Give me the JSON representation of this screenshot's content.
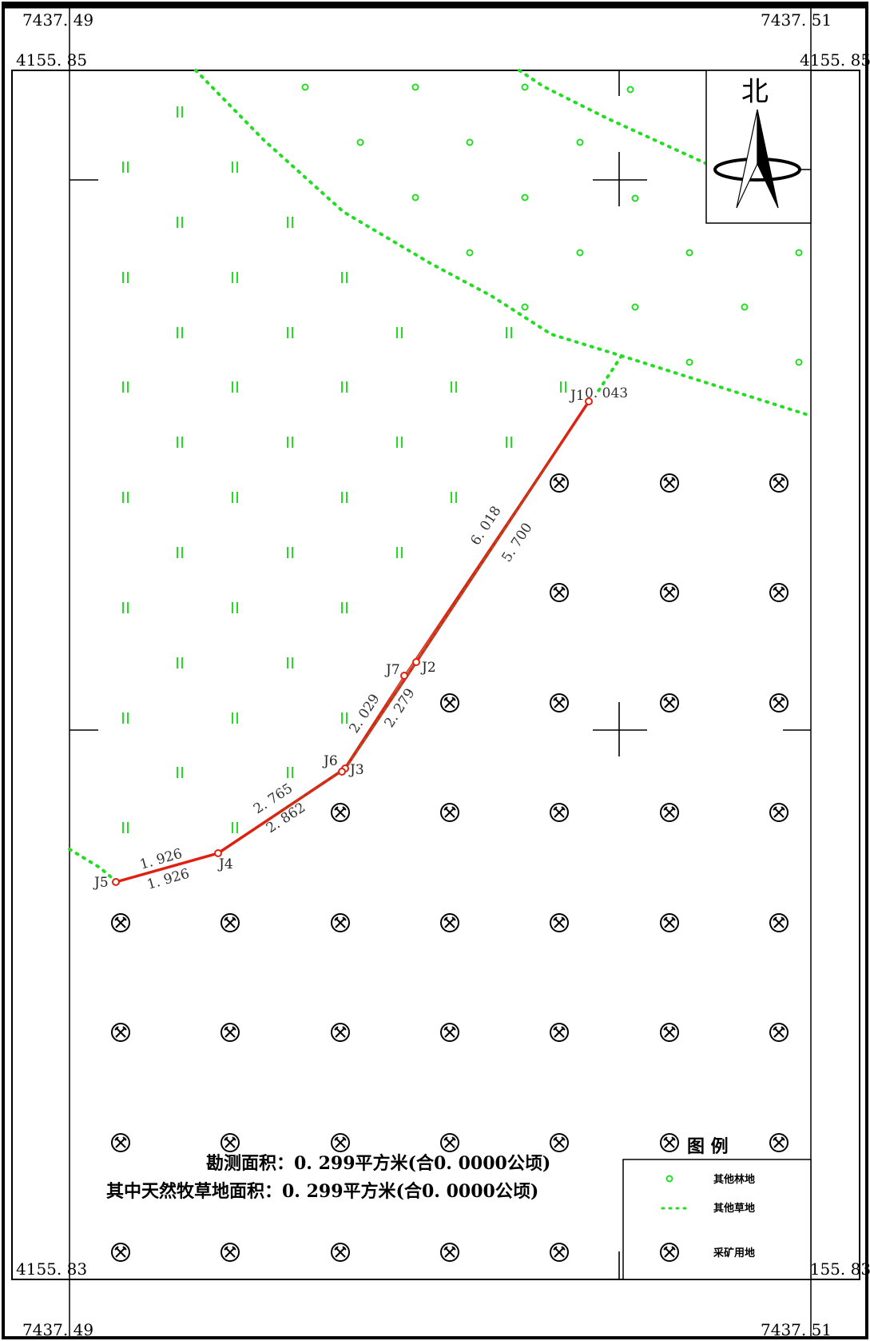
{
  "frame": {
    "top_left_x": "7437. 49",
    "top_right_x": "7437. 51",
    "bottom_left_x": "7437. 49",
    "bottom_right_x": "7437. 51",
    "left_top_y": "4155. 85",
    "right_top_y": "4155. 85",
    "left_bottom_y": "4155. 83",
    "right_bottom_y": "4155. 83"
  },
  "north_label": "北",
  "points": [
    {
      "id": "J1",
      "label": "J1"
    },
    {
      "id": "J2",
      "label": "J2"
    },
    {
      "id": "J3",
      "label": "J3"
    },
    {
      "id": "J4",
      "label": "J4"
    },
    {
      "id": "J5",
      "label": "J5"
    },
    {
      "id": "J6",
      "label": "J6"
    },
    {
      "id": "J7",
      "label": "J7"
    }
  ],
  "lengths": {
    "j1_gap": "0. 043",
    "seg_upper_outer": "6. 018",
    "seg_upper_inner": "5. 700",
    "seg_mid_outer": "2. 029",
    "seg_mid_inner": "2. 279",
    "seg_low_outer": "2. 765",
    "seg_low_inner": "2. 862",
    "seg_end_outer": "1. 926",
    "seg_end_inner": "1. 926"
  },
  "area": {
    "survey": "勘测面积：0. 299平方米(合0. 0000公顷)",
    "grassland": "其中天然牧草地面积：0. 299平方米(合0. 0000公顷)"
  },
  "legend": {
    "title": "图  例",
    "items": [
      {
        "symbol": "forest-circle",
        "label": "其他林地"
      },
      {
        "symbol": "grass-dots",
        "label": "其他草地"
      },
      {
        "symbol": "mining-symbol",
        "label": "采矿用地"
      }
    ]
  },
  "colors": {
    "symbol_green": "#22dd22",
    "boundary_red": "#e02010",
    "frame": "#000000"
  }
}
